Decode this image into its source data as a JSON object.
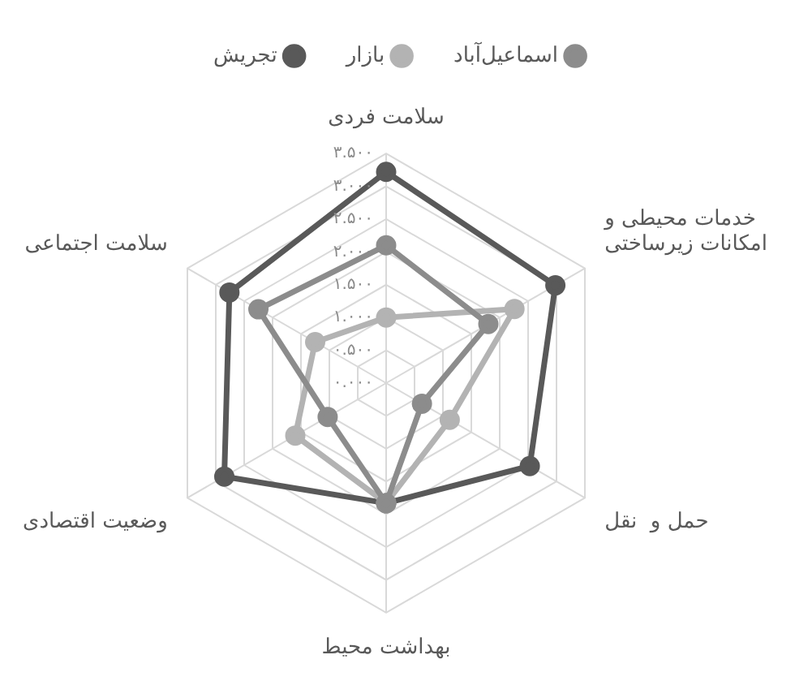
{
  "chart_data": {
    "type": "radar",
    "categories": [
      "سلامت فردی",
      "خدمات محیطی و امکانات زیرساختی",
      "حمل و  نقل",
      "بهداشت محیط",
      "وضعیت اقتصادی",
      "سلامت اجتماعی"
    ],
    "series": [
      {
        "name": "اسماعیل‌آباد",
        "color": "#8c8c8c",
        "values": [
          2.1,
          1.8,
          0.63,
          1.83,
          1.03,
          2.25
        ]
      },
      {
        "name": "بازار",
        "color": "#b3b3b3",
        "values": [
          1.0,
          2.26,
          1.12,
          1.83,
          1.6,
          1.25
        ]
      },
      {
        "name": "تجریش",
        "color": "#595959",
        "values": [
          3.22,
          2.98,
          2.53,
          1.83,
          2.85,
          2.76
        ]
      }
    ],
    "ylim": [
      0,
      3.5
    ],
    "yticks": [
      {
        "value": 0,
        "label": "۰.۰۰۰"
      },
      {
        "value": 0.5,
        "label": "۰.۵۰۰"
      },
      {
        "value": 1,
        "label": "۱.۰۰۰"
      },
      {
        "value": 1.5,
        "label": "۱.۵۰۰"
      },
      {
        "value": 2,
        "label": "۲.۰۰۰"
      },
      {
        "value": 2.5,
        "label": "۲.۵۰۰"
      },
      {
        "value": 3,
        "label": "۳.۰۰۰"
      },
      {
        "value": 3.5,
        "label": "۳.۵۰۰"
      }
    ],
    "grid": true,
    "legend": "top",
    "marker": "circle",
    "line_style": "solid"
  }
}
